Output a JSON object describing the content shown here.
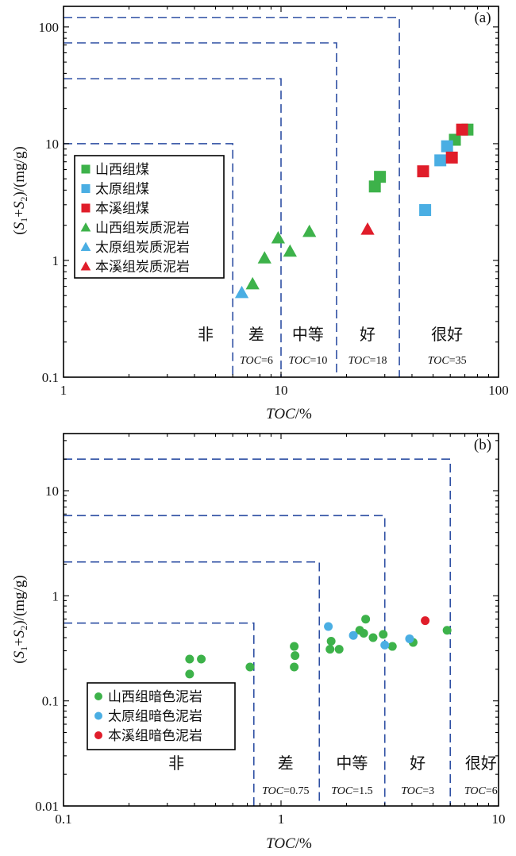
{
  "colors": {
    "green": "#3db24a",
    "blue": "#4aaee3",
    "red": "#e01d2a",
    "boundary": "#2e4fa3"
  },
  "chart_data": [
    {
      "type": "scatter",
      "panel_label": "(a)",
      "xscale": "log",
      "yscale": "log",
      "xlim": [
        1,
        100
      ],
      "ylim": [
        0.1,
        150
      ],
      "xticks": [
        "1",
        "10",
        "100"
      ],
      "yticks": [
        "0.1",
        "1",
        "10",
        "100"
      ],
      "xlabel_it": "TOC",
      "xlabel_rest": "/%",
      "ylabel_parts": [
        "(",
        "S",
        "1",
        "+",
        "S",
        "2",
        ")/(mg/g)"
      ],
      "grid": false,
      "legend_position": "upper-left",
      "boundaries": [
        {
          "toc": 6,
          "s": 10
        },
        {
          "toc": 10,
          "s": 36
        },
        {
          "toc": 18,
          "s": 73
        },
        {
          "toc": 35,
          "s": 120
        }
      ],
      "grades": [
        {
          "name": "非",
          "toc_x": 4.5
        },
        {
          "name": "差",
          "toc_x": 7.7,
          "toc_label_it": "TOC",
          "toc_label_rest": "=6"
        },
        {
          "name": "中等",
          "toc_x": 13.3,
          "toc_label_it": "TOC",
          "toc_label_rest": "=10"
        },
        {
          "name": "好",
          "toc_x": 25,
          "toc_label_it": "TOC",
          "toc_label_rest": "=18"
        },
        {
          "name": "很好",
          "toc_x": 58,
          "toc_label_it": "TOC",
          "toc_label_rest": "=35"
        }
      ],
      "series": [
        {
          "name": "山西组煤",
          "marker": "square",
          "color": "#3db24a",
          "points": [
            [
              27,
              4.3
            ],
            [
              28.5,
              5.2
            ],
            [
              63,
              10.8
            ],
            [
              72,
              13.2
            ]
          ]
        },
        {
          "name": "太原组煤",
          "marker": "square",
          "color": "#4aaee3",
          "points": [
            [
              46,
              2.7
            ],
            [
              54,
              7.2
            ],
            [
              58,
              9.5
            ]
          ]
        },
        {
          "name": "本溪组煤",
          "marker": "square",
          "color": "#e01d2a",
          "points": [
            [
              45,
              5.8
            ],
            [
              61,
              7.6
            ],
            [
              68,
              13.2
            ]
          ]
        },
        {
          "name": "山西组炭质泥岩",
          "marker": "triangle",
          "color": "#3db24a",
          "points": [
            [
              7.4,
              0.63
            ],
            [
              8.4,
              1.05
            ],
            [
              9.7,
              1.56
            ],
            [
              11,
              1.2
            ],
            [
              13.5,
              1.77
            ]
          ]
        },
        {
          "name": "太原组炭质泥岩",
          "marker": "triangle",
          "color": "#4aaee3",
          "points": [
            [
              6.6,
              0.53
            ]
          ]
        },
        {
          "name": "本溪组炭质泥岩",
          "marker": "triangle",
          "color": "#e01d2a",
          "points": [
            [
              25,
              1.85
            ]
          ]
        }
      ]
    },
    {
      "type": "scatter",
      "panel_label": "(b)",
      "xscale": "log",
      "yscale": "log",
      "xlim": [
        0.1,
        10
      ],
      "ylim": [
        0.01,
        35
      ],
      "xticks": [
        "0.1",
        "1",
        "10"
      ],
      "yticks": [
        "0.01",
        "0.1",
        "1",
        "10"
      ],
      "xlabel_it": "TOC",
      "xlabel_rest": "/%",
      "ylabel_parts": [
        "(",
        "S",
        "1",
        "+",
        "S",
        "2",
        ")/(mg/g)"
      ],
      "grid": false,
      "legend_position": "lower-left",
      "boundaries": [
        {
          "toc": 0.75,
          "s": 0.55
        },
        {
          "toc": 1.5,
          "s": 2.1
        },
        {
          "toc": 3,
          "s": 5.8
        },
        {
          "toc": 6,
          "s": 20
        }
      ],
      "grades": [
        {
          "name": "非",
          "toc_x": 0.33
        },
        {
          "name": "差",
          "toc_x": 1.05,
          "toc_label_it": "TOC",
          "toc_label_rest": "=0.75"
        },
        {
          "name": "中等",
          "toc_x": 2.12,
          "toc_label_it": "TOC",
          "toc_label_rest": "=1.5"
        },
        {
          "name": "好",
          "toc_x": 4.25,
          "toc_label_it": "TOC",
          "toc_label_rest": "=3"
        },
        {
          "name": "很好",
          "toc_x": 8.3,
          "toc_label_it": "TOC",
          "toc_label_rest": "=6"
        }
      ],
      "series": [
        {
          "name": "山西组暗色泥岩",
          "marker": "circle",
          "color": "#3db24a",
          "points": [
            [
              0.38,
              0.25
            ],
            [
              0.43,
              0.25
            ],
            [
              0.38,
              0.18
            ],
            [
              0.72,
              0.21
            ],
            [
              1.15,
              0.33
            ],
            [
              1.16,
              0.27
            ],
            [
              1.15,
              0.21
            ],
            [
              1.7,
              0.37
            ],
            [
              1.68,
              0.31
            ],
            [
              1.85,
              0.31
            ],
            [
              2.3,
              0.47
            ],
            [
              2.4,
              0.44
            ],
            [
              2.45,
              0.6
            ],
            [
              2.65,
              0.4
            ],
            [
              2.95,
              0.43
            ],
            [
              3.25,
              0.33
            ],
            [
              4.05,
              0.36
            ],
            [
              5.8,
              0.47
            ]
          ]
        },
        {
          "name": "太原组暗色泥岩",
          "marker": "circle",
          "color": "#4aaee3",
          "points": [
            [
              1.65,
              0.51
            ],
            [
              2.15,
              0.42
            ],
            [
              3.0,
              0.34
            ],
            [
              3.9,
              0.39
            ]
          ]
        },
        {
          "name": "本溪组暗色泥岩",
          "marker": "circle",
          "color": "#e01d2a",
          "points": [
            [
              4.6,
              0.58
            ]
          ]
        }
      ]
    }
  ]
}
